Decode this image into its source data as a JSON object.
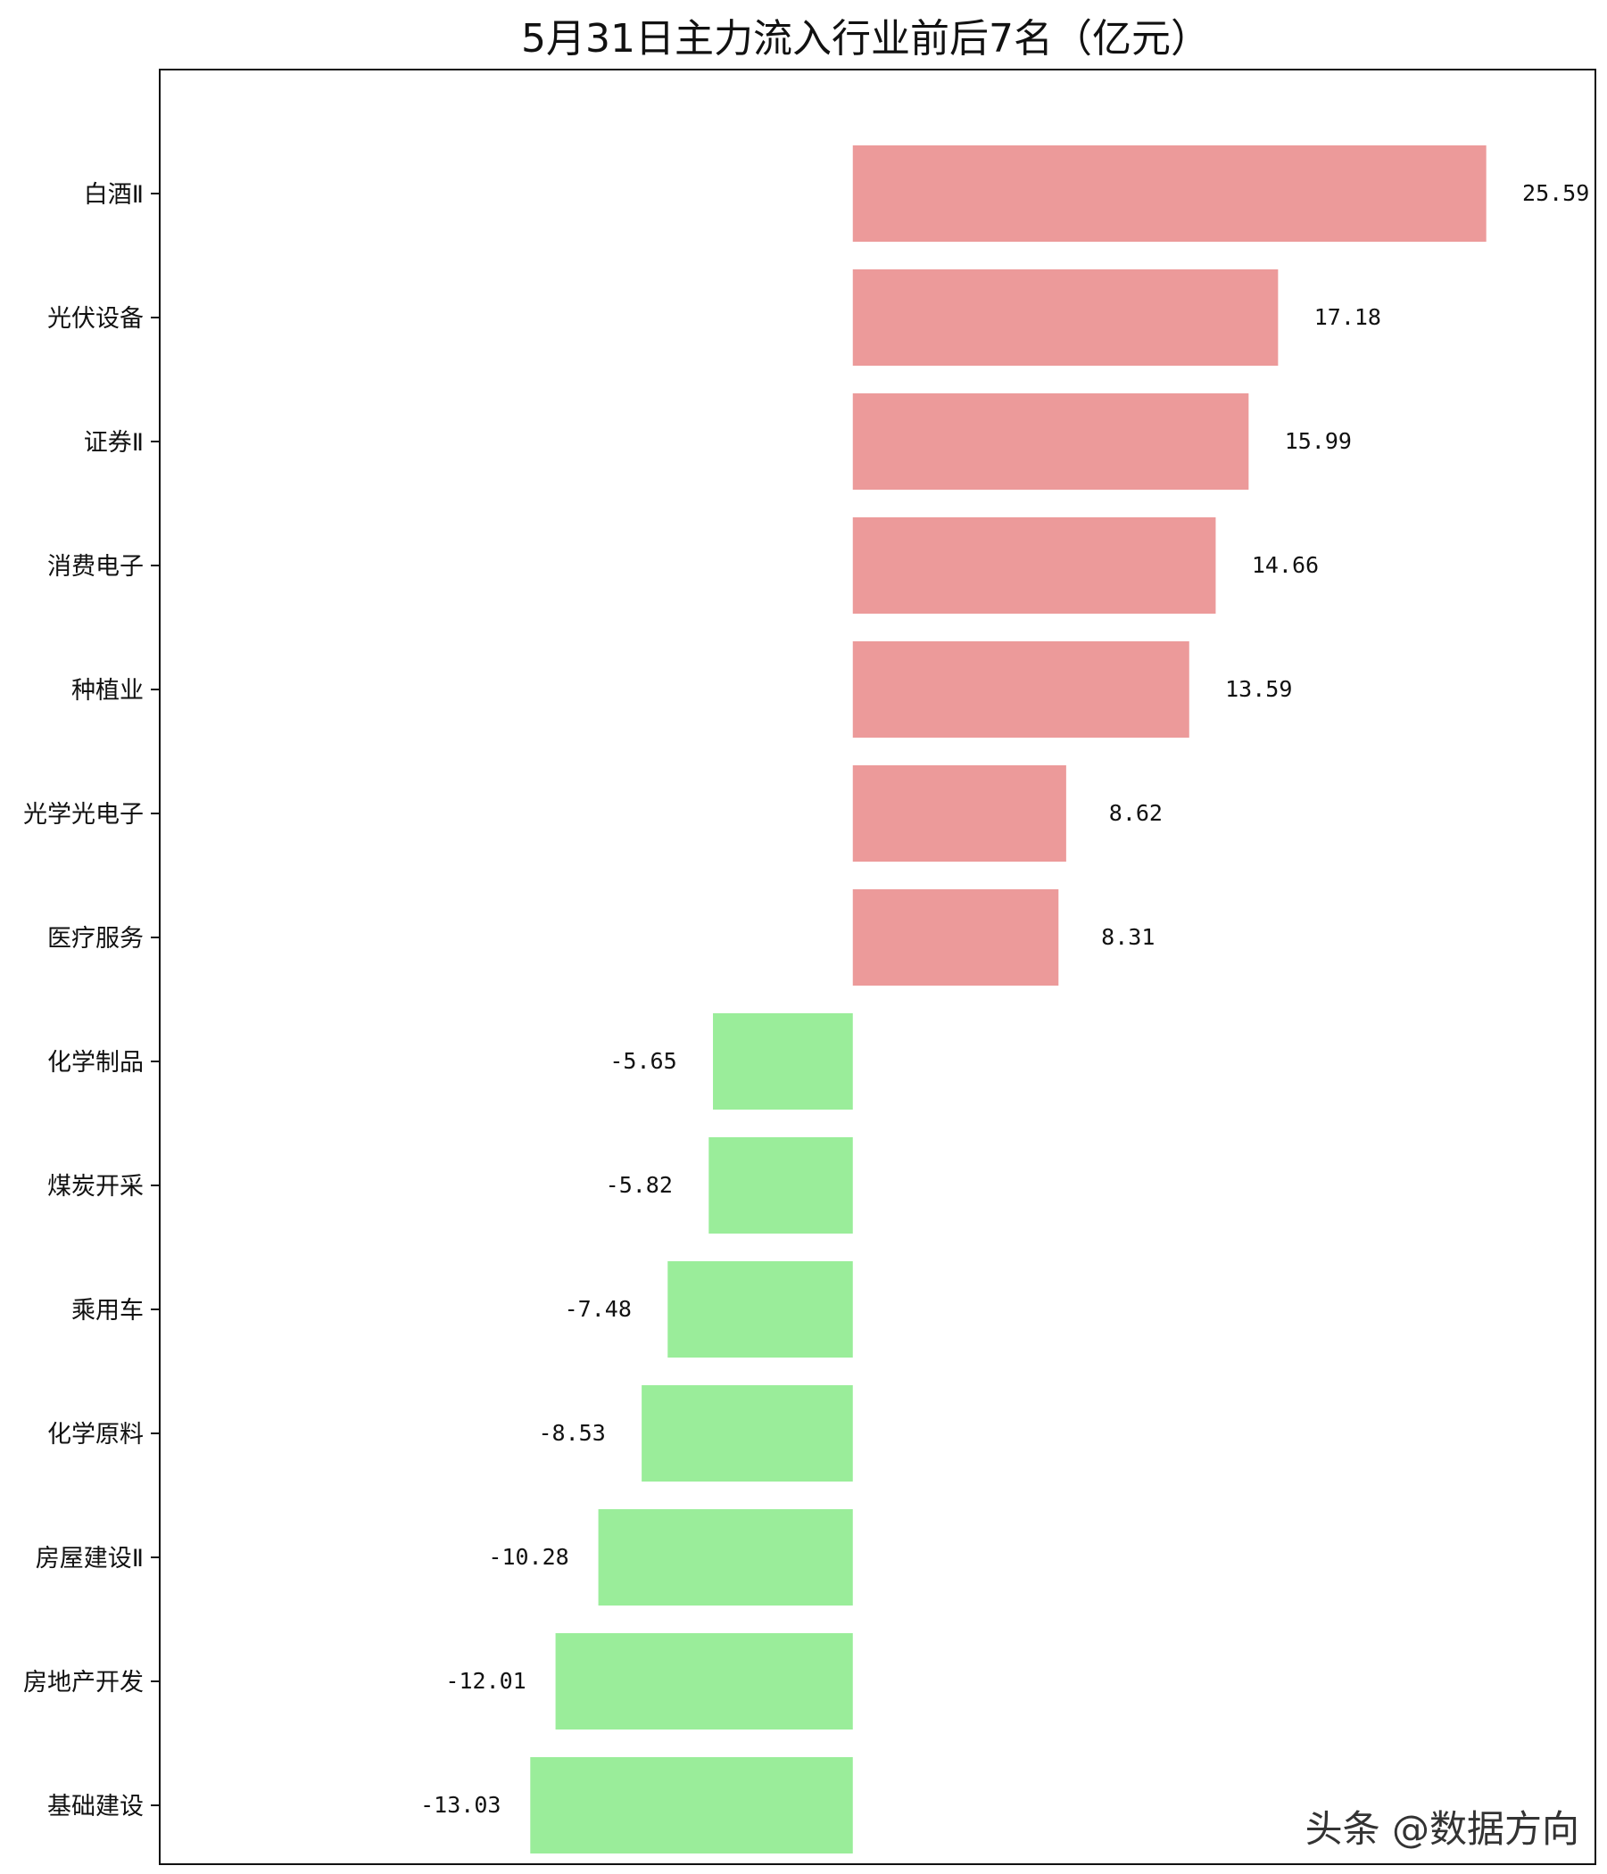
{
  "chart_data": {
    "type": "bar",
    "orientation": "horizontal",
    "title": "5月31日主力流入行业前后7名（亿元）",
    "xlabel": "",
    "ylabel": "",
    "xlim": [
      -28,
      30
    ],
    "grid": false,
    "legend": "none",
    "categories": [
      "白酒Ⅱ",
      "光伏设备",
      "证券Ⅱ",
      "消费电子",
      "种植业",
      "光学光电子",
      "医疗服务",
      "化学制品",
      "煤炭开采",
      "乘用车",
      "化学原料",
      "房屋建设Ⅱ",
      "房地产开发",
      "基础建设"
    ],
    "values": [
      25.59,
      17.18,
      15.99,
      14.66,
      13.59,
      8.62,
      8.31,
      -5.65,
      -5.82,
      -7.48,
      -8.53,
      -10.28,
      -12.01,
      -13.03
    ],
    "value_labels": [
      "25.59",
      "17.18",
      "15.99",
      "14.66",
      "13.59",
      "8.62",
      "8.31",
      "-5.65",
      "-5.82",
      "-7.48",
      "-8.53",
      "-10.28",
      "-12.01",
      "-13.03"
    ],
    "colors": {
      "positive": "#ec9a9a",
      "negative": "#9aed9a",
      "axis": "#111111"
    }
  },
  "watermark": "头条 @数据方向"
}
